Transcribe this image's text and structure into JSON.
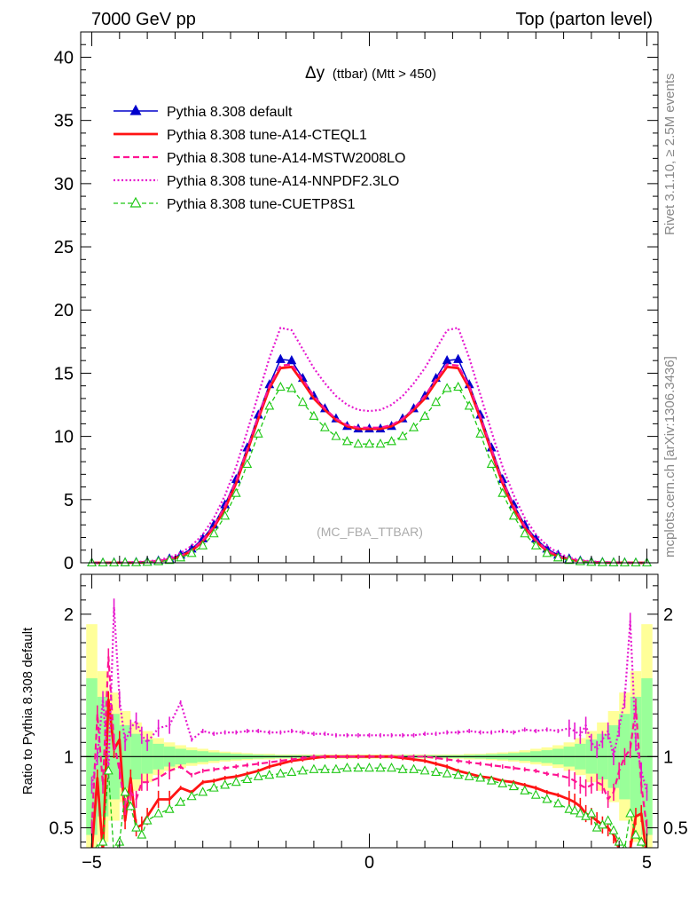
{
  "header": {
    "left": "7000 GeV pp",
    "right": "Top (parton level)"
  },
  "side_labels": {
    "rivet": "Rivet 3.1.10, ≥ 2.5M events",
    "mcplots": "mcplots.cern.ch [arXiv:1306.3436]"
  },
  "chart_data": [
    {
      "panel": "main",
      "type": "line",
      "title": "Δy (ttbar) (Mtt > 450)",
      "title_main": "Δy",
      "title_sub": "(ttbar) (Mtt > 450)",
      "watermark": "(MC_FBA_TTBAR)",
      "xlim": [
        -5.2,
        5.2
      ],
      "ylim": [
        0,
        42
      ],
      "yticks": [
        0,
        5,
        10,
        15,
        20,
        25,
        30,
        35,
        40
      ],
      "grid": false,
      "legend_position": "top-left",
      "x": [
        -5.0,
        -4.8,
        -4.6,
        -4.4,
        -4.2,
        -4.0,
        -3.8,
        -3.6,
        -3.4,
        -3.2,
        -3.0,
        -2.8,
        -2.6,
        -2.4,
        -2.2,
        -2.0,
        -1.8,
        -1.6,
        -1.4,
        -1.2,
        -1.0,
        -0.8,
        -0.6,
        -0.4,
        -0.2,
        0.0,
        0.2,
        0.4,
        0.6,
        0.8,
        1.0,
        1.2,
        1.4,
        1.6,
        1.8,
        2.0,
        2.2,
        2.4,
        2.6,
        2.8,
        3.0,
        3.2,
        3.4,
        3.6,
        3.8,
        4.0,
        4.2,
        4.4,
        4.6,
        4.8,
        5.0
      ],
      "series": [
        {
          "name": "Pythia 8.308 default",
          "color": "#0000cc",
          "dash": "",
          "marker": "triangle-filled",
          "width": 1.5,
          "values": [
            0.0,
            0.0,
            0.01,
            0.02,
            0.04,
            0.08,
            0.16,
            0.32,
            0.62,
            1.1,
            1.9,
            3.0,
            4.6,
            6.6,
            9.1,
            11.7,
            14.1,
            16.1,
            16.0,
            14.6,
            13.2,
            12.2,
            11.4,
            10.8,
            10.6,
            10.6,
            10.6,
            10.8,
            11.4,
            12.2,
            13.2,
            14.6,
            16.0,
            16.1,
            14.1,
            11.7,
            9.1,
            6.6,
            4.6,
            3.0,
            1.9,
            1.1,
            0.62,
            0.32,
            0.16,
            0.08,
            0.04,
            0.02,
            0.01,
            0.0,
            0.0
          ]
        },
        {
          "name": "Pythia 8.308 tune-A14-CTEQL1",
          "color": "#ff1414",
          "dash": "",
          "marker": "",
          "width": 2.8,
          "values": [
            0.0,
            0.0,
            0.01,
            0.01,
            0.02,
            0.05,
            0.12,
            0.25,
            0.5,
            0.95,
            1.7,
            2.8,
            4.3,
            6.3,
            8.8,
            11.4,
            13.8,
            15.4,
            15.5,
            14.3,
            13.0,
            12.1,
            11.3,
            10.8,
            10.6,
            10.6,
            10.6,
            10.8,
            11.3,
            12.1,
            13.0,
            14.3,
            15.5,
            15.4,
            13.8,
            11.4,
            8.8,
            6.3,
            4.3,
            2.8,
            1.7,
            0.95,
            0.5,
            0.25,
            0.12,
            0.05,
            0.02,
            0.01,
            0.01,
            0.0,
            0.0
          ]
        },
        {
          "name": "Pythia 8.308 tune-A14-MSTW2008LO",
          "color": "#ff1493",
          "dash": "7,4",
          "marker": "",
          "width": 2.2,
          "values": [
            0.0,
            0.0,
            0.01,
            0.02,
            0.03,
            0.06,
            0.14,
            0.28,
            0.55,
            1.0,
            1.8,
            2.9,
            4.5,
            6.5,
            9.0,
            11.6,
            14.0,
            15.6,
            15.7,
            14.5,
            13.2,
            12.2,
            11.4,
            10.9,
            10.7,
            10.7,
            10.7,
            10.9,
            11.4,
            12.2,
            13.2,
            14.5,
            15.7,
            15.6,
            14.0,
            11.6,
            9.0,
            6.5,
            4.5,
            2.9,
            1.8,
            1.0,
            0.55,
            0.28,
            0.14,
            0.06,
            0.03,
            0.02,
            0.01,
            0.0,
            0.0
          ]
        },
        {
          "name": "Pythia 8.308 tune-A14-NNPDF2.3LO",
          "color": "#e619cf",
          "dash": "2,2.5",
          "marker": "",
          "width": 2.2,
          "values": [
            0.0,
            0.0,
            0.02,
            0.03,
            0.06,
            0.11,
            0.22,
            0.42,
            0.78,
            1.35,
            2.25,
            3.55,
            5.35,
            7.6,
            10.4,
            13.3,
            16.2,
            18.6,
            18.4,
            16.9,
            15.4,
            14.2,
            13.2,
            12.5,
            12.1,
            12.0,
            12.1,
            12.5,
            13.2,
            14.2,
            15.4,
            16.9,
            18.4,
            18.6,
            16.2,
            13.3,
            10.4,
            7.6,
            5.35,
            3.55,
            2.25,
            1.35,
            0.78,
            0.42,
            0.22,
            0.11,
            0.06,
            0.03,
            0.02,
            0.0,
            0.0
          ]
        },
        {
          "name": "Pythia 8.308 tune-CUETP8S1",
          "color": "#1ec814",
          "dash": "5,3",
          "marker": "triangle-open",
          "width": 1.3,
          "values": [
            0.0,
            0.0,
            0.0,
            0.01,
            0.02,
            0.05,
            0.1,
            0.2,
            0.4,
            0.75,
            1.35,
            2.3,
            3.7,
            5.5,
            7.8,
            10.2,
            12.4,
            13.9,
            13.8,
            12.7,
            11.6,
            10.7,
            10.0,
            9.6,
            9.4,
            9.4,
            9.4,
            9.6,
            10.0,
            10.7,
            11.6,
            12.7,
            13.8,
            13.9,
            12.4,
            10.2,
            7.8,
            5.5,
            3.7,
            2.3,
            1.35,
            0.75,
            0.4,
            0.2,
            0.1,
            0.05,
            0.02,
            0.01,
            0.0,
            0.0,
            0.0
          ]
        }
      ]
    },
    {
      "panel": "ratio",
      "type": "line",
      "ylabel": "Ratio to Pythia 8.308 default",
      "xlim": [
        -5.2,
        5.2
      ],
      "ylim": [
        0.36,
        2.28
      ],
      "xticks": [
        -5,
        0,
        5
      ],
      "xtick_labels": [
        "−5",
        "0",
        "5"
      ],
      "yticks": [
        0.5,
        1,
        2
      ],
      "ytick_labels": [
        "0.5",
        "1",
        "2"
      ],
      "reference_line": 1,
      "band_x": [
        -5.0,
        -4.8,
        -4.6,
        -4.4,
        -4.2,
        -4.0,
        -3.8,
        -3.6,
        -3.4,
        -3.2,
        -3.0,
        -2.8,
        -2.6,
        -2.4,
        -2.2,
        -2.0,
        -1.8,
        -1.6,
        -1.4,
        -1.2,
        -1.0,
        -0.8,
        -0.6,
        -0.4,
        -0.2,
        0.0,
        0.2,
        0.4,
        0.6,
        0.8,
        1.0,
        1.2,
        1.4,
        1.6,
        1.8,
        2.0,
        2.2,
        2.4,
        2.6,
        2.8,
        3.0,
        3.2,
        3.4,
        3.6,
        3.8,
        4.0,
        4.2,
        4.4,
        4.6,
        4.8,
        5.0
      ],
      "band_yellow": [
        0.93,
        0.6,
        0.45,
        0.32,
        0.24,
        0.18,
        0.13,
        0.1,
        0.08,
        0.065,
        0.055,
        0.045,
        0.035,
        0.03,
        0.025,
        0.02,
        0.02,
        0.015,
        0.015,
        0.015,
        0.015,
        0.015,
        0.015,
        0.015,
        0.015,
        0.015,
        0.015,
        0.015,
        0.015,
        0.015,
        0.015,
        0.015,
        0.015,
        0.015,
        0.02,
        0.02,
        0.025,
        0.03,
        0.035,
        0.045,
        0.055,
        0.065,
        0.08,
        0.1,
        0.13,
        0.18,
        0.24,
        0.32,
        0.45,
        0.6,
        0.93
      ],
      "band_green": [
        0.55,
        0.42,
        0.3,
        0.22,
        0.16,
        0.12,
        0.09,
        0.07,
        0.055,
        0.045,
        0.038,
        0.03,
        0.025,
        0.02,
        0.017,
        0.014,
        0.012,
        0.01,
        0.01,
        0.01,
        0.01,
        0.01,
        0.01,
        0.01,
        0.01,
        0.01,
        0.01,
        0.01,
        0.01,
        0.01,
        0.01,
        0.01,
        0.01,
        0.01,
        0.012,
        0.014,
        0.017,
        0.02,
        0.025,
        0.03,
        0.038,
        0.045,
        0.055,
        0.07,
        0.09,
        0.12,
        0.16,
        0.22,
        0.3,
        0.42,
        0.55
      ],
      "x": [
        -5.0,
        -4.9,
        -4.8,
        -4.7,
        -4.6,
        -4.5,
        -4.4,
        -4.3,
        -4.2,
        -4.1,
        -4.0,
        -3.8,
        -3.6,
        -3.4,
        -3.2,
        -3.0,
        -2.8,
        -2.6,
        -2.4,
        -2.2,
        -2.0,
        -1.8,
        -1.6,
        -1.4,
        -1.2,
        -1.0,
        -0.8,
        -0.6,
        -0.4,
        -0.2,
        0.0,
        0.2,
        0.4,
        0.6,
        0.8,
        1.0,
        1.2,
        1.4,
        1.6,
        1.8,
        2.0,
        2.2,
        2.4,
        2.6,
        2.8,
        3.0,
        3.2,
        3.4,
        3.6,
        3.7,
        3.8,
        3.9,
        4.0,
        4.1,
        4.2,
        4.3,
        4.4,
        4.5,
        4.6,
        4.7,
        4.8,
        4.9,
        5.0
      ],
      "series": [
        {
          "name": "Pythia 8.308 tune-A14-CTEQL1",
          "color": "#ff1414",
          "dash": "",
          "width": 2.8,
          "values": [
            0.33,
            0.85,
            0.33,
            1.4,
            1.05,
            1.12,
            0.55,
            0.85,
            0.5,
            0.52,
            0.58,
            0.7,
            0.7,
            0.78,
            0.75,
            0.82,
            0.83,
            0.85,
            0.86,
            0.88,
            0.9,
            0.93,
            0.95,
            0.97,
            0.98,
            0.99,
            1.0,
            1.0,
            1.0,
            1.0,
            1.0,
            1.0,
            1.0,
            0.99,
            0.98,
            0.97,
            0.95,
            0.93,
            0.9,
            0.88,
            0.86,
            0.85,
            0.83,
            0.82,
            0.8,
            0.78,
            0.75,
            0.73,
            0.7,
            0.68,
            0.65,
            0.6,
            0.58,
            0.55,
            0.52,
            0.5,
            0.45,
            0.35,
            0.3,
            0.35,
            0.58,
            0.6,
            0.3
          ]
        },
        {
          "name": "Pythia 8.308 tune-A14-MSTW2008LO",
          "color": "#ff1493",
          "dash": "7,4",
          "width": 2.2,
          "values": [
            0.5,
            1.3,
            0.8,
            1.7,
            1.1,
            0.9,
            0.65,
            0.75,
            0.7,
            0.82,
            0.82,
            0.85,
            0.9,
            0.93,
            0.87,
            0.9,
            0.91,
            0.92,
            0.93,
            0.94,
            0.95,
            0.96,
            0.97,
            0.98,
            0.99,
            1.0,
            1.0,
            1.0,
            1.0,
            1.0,
            1.0,
            1.0,
            1.0,
            1.0,
            1.0,
            1.0,
            0.99,
            0.98,
            0.97,
            0.96,
            0.95,
            0.94,
            0.93,
            0.92,
            0.91,
            0.9,
            0.88,
            0.87,
            0.85,
            0.83,
            0.8,
            0.78,
            0.8,
            0.82,
            0.8,
            0.7,
            0.75,
            0.9,
            1.0,
            1.05,
            1.35,
            0.8,
            0.5
          ]
        },
        {
          "name": "Pythia 8.308 tune-A14-NNPDF2.3LO",
          "color": "#e619cf",
          "dash": "2,2.5",
          "width": 2.2,
          "values": [
            0.8,
            1.0,
            1.4,
            0.9,
            2.05,
            1.4,
            1.1,
            1.2,
            1.25,
            1.15,
            1.1,
            1.2,
            1.22,
            1.38,
            1.12,
            1.18,
            1.16,
            1.17,
            1.17,
            1.18,
            1.18,
            1.17,
            1.17,
            1.18,
            1.17,
            1.16,
            1.16,
            1.15,
            1.15,
            1.15,
            1.15,
            1.15,
            1.15,
            1.15,
            1.15,
            1.16,
            1.16,
            1.17,
            1.17,
            1.18,
            1.17,
            1.17,
            1.18,
            1.17,
            1.19,
            1.18,
            1.19,
            1.18,
            1.2,
            1.18,
            1.15,
            1.22,
            1.1,
            1.05,
            1.12,
            1.18,
            1.0,
            1.2,
            1.4,
            1.95,
            1.1,
            0.9,
            0.75
          ]
        },
        {
          "name": "Pythia 8.308 tune-CUETP8S1",
          "color": "#1ec814",
          "dash": "5,3",
          "width": 1.3,
          "values": [
            0.3,
            0.35,
            0.4,
            0.9,
            0.3,
            0.4,
            0.75,
            0.65,
            0.5,
            0.45,
            0.55,
            0.6,
            0.63,
            0.68,
            0.72,
            0.75,
            0.78,
            0.8,
            0.82,
            0.84,
            0.86,
            0.87,
            0.88,
            0.89,
            0.9,
            0.91,
            0.91,
            0.91,
            0.92,
            0.92,
            0.92,
            0.92,
            0.92,
            0.91,
            0.91,
            0.9,
            0.89,
            0.88,
            0.87,
            0.86,
            0.85,
            0.83,
            0.81,
            0.79,
            0.76,
            0.73,
            0.7,
            0.67,
            0.63,
            0.62,
            0.6,
            0.58,
            0.6,
            0.5,
            0.52,
            0.55,
            0.48,
            0.4,
            0.35,
            0.6,
            0.45,
            0.4,
            0.3
          ]
        }
      ]
    }
  ]
}
